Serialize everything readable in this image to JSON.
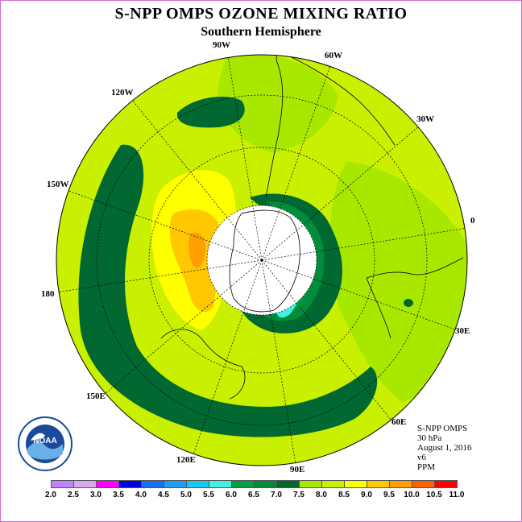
{
  "title": "S-NPP OMPS OZONE MIXING RATIO",
  "subtitle": "Southern Hemisphere",
  "longitude_labels": {
    "w90": "90W",
    "w60": "60W",
    "w30": "30W",
    "w120": "120W",
    "w150": "150W",
    "e0": "0",
    "e180": "180",
    "e30": "30E",
    "e60": "60E",
    "e90": "90E",
    "e120": "120E",
    "e150": "150E"
  },
  "info": {
    "instrument": "S-NPP OMPS",
    "level": "30 hPa",
    "date": "August 1, 2016",
    "version": "v6",
    "units": "PPM"
  },
  "logo_text": "NOAA",
  "colorbar": {
    "ticks": [
      "2.0",
      "2.5",
      "3.0",
      "3.5",
      "4.0",
      "4.5",
      "5.0",
      "5.5",
      "6.0",
      "6.5",
      "7.0",
      "7.5",
      "8.0",
      "8.5",
      "9.0",
      "9.5",
      "10.0",
      "10.5",
      "11.0"
    ],
    "colors": [
      "#c080ff",
      "#d8a8f0",
      "#ff00ff",
      "#0000e0",
      "#1e6ef0",
      "#1ea0f0",
      "#18c8f0",
      "#40f0e0",
      "#00a040",
      "#008c3a",
      "#006830",
      "#a8e800",
      "#c8f000",
      "#ffff00",
      "#ffc800",
      "#ffa000",
      "#ff6000",
      "#ff0000",
      "#804030"
    ]
  },
  "colors": {
    "background_level": "#a8e800",
    "light_green": "#c8f000",
    "dark_green": "#006830",
    "mid_green": "#008c3a",
    "green": "#00a040",
    "yellow": "#ffff00",
    "orange": "#ffc800",
    "dark_orange": "#ffa000",
    "cyan": "#40f0e0",
    "polar_gap": "#ffffff"
  }
}
